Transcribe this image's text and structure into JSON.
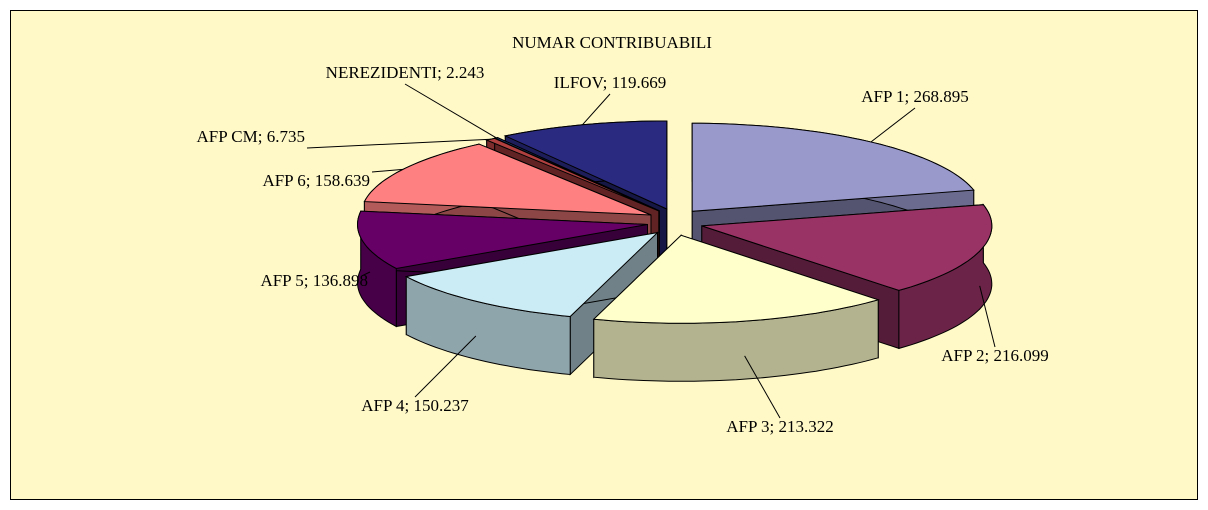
{
  "chart_data": {
    "type": "pie3d",
    "title": "NUMAR CONTRIBUABILI",
    "categories": [
      "AFP 1",
      "AFP 2",
      "AFP 3",
      "AFP 4",
      "AFP 5",
      "AFP 6",
      "AFP CM",
      "NEREZIDENTI",
      "ILFOV"
    ],
    "values": [
      268895,
      216099,
      213322,
      150237,
      136898,
      158639,
      6735,
      2243,
      119669
    ],
    "value_labels": [
      "268.895",
      "216.099",
      "213.322",
      "150.237",
      "136.898",
      "158.639",
      "6.735",
      "2.243",
      "119.669"
    ],
    "label_separator": "; ",
    "colors": [
      "#9999cc",
      "#993366",
      "#ffffcc",
      "#ccecf5",
      "#660066",
      "#ff8080",
      "#b04040",
      "#2050a0",
      "#2a2a80"
    ],
    "background": "#fff9c8"
  }
}
